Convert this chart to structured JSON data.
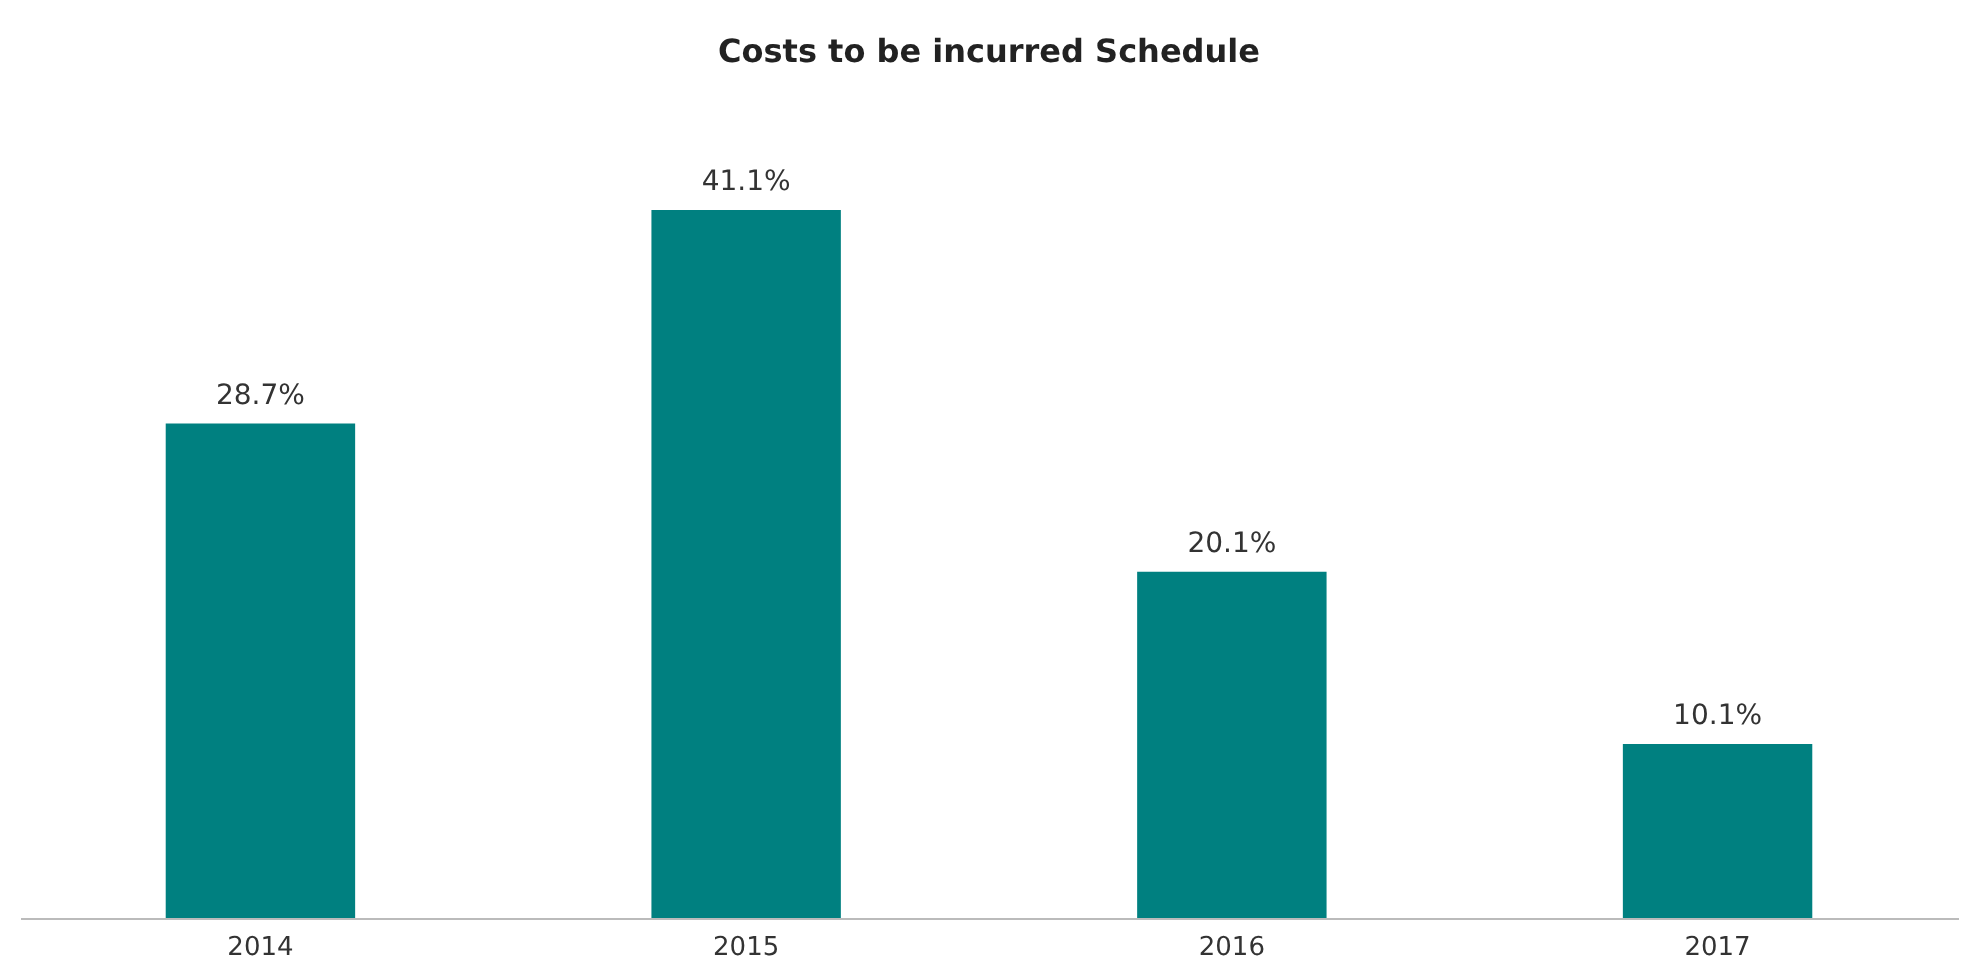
{
  "chart_data": {
    "type": "bar",
    "title": "Costs to be incurred Schedule",
    "categories": [
      "2014",
      "2015",
      "2016",
      "2017"
    ],
    "values": [
      28.7,
      41.1,
      20.1,
      10.1
    ],
    "value_labels": [
      "28.7%",
      "41.1%",
      "20.1%",
      "10.1%"
    ],
    "color": "#008080",
    "tick_labels": "x",
    "grid": false
  }
}
